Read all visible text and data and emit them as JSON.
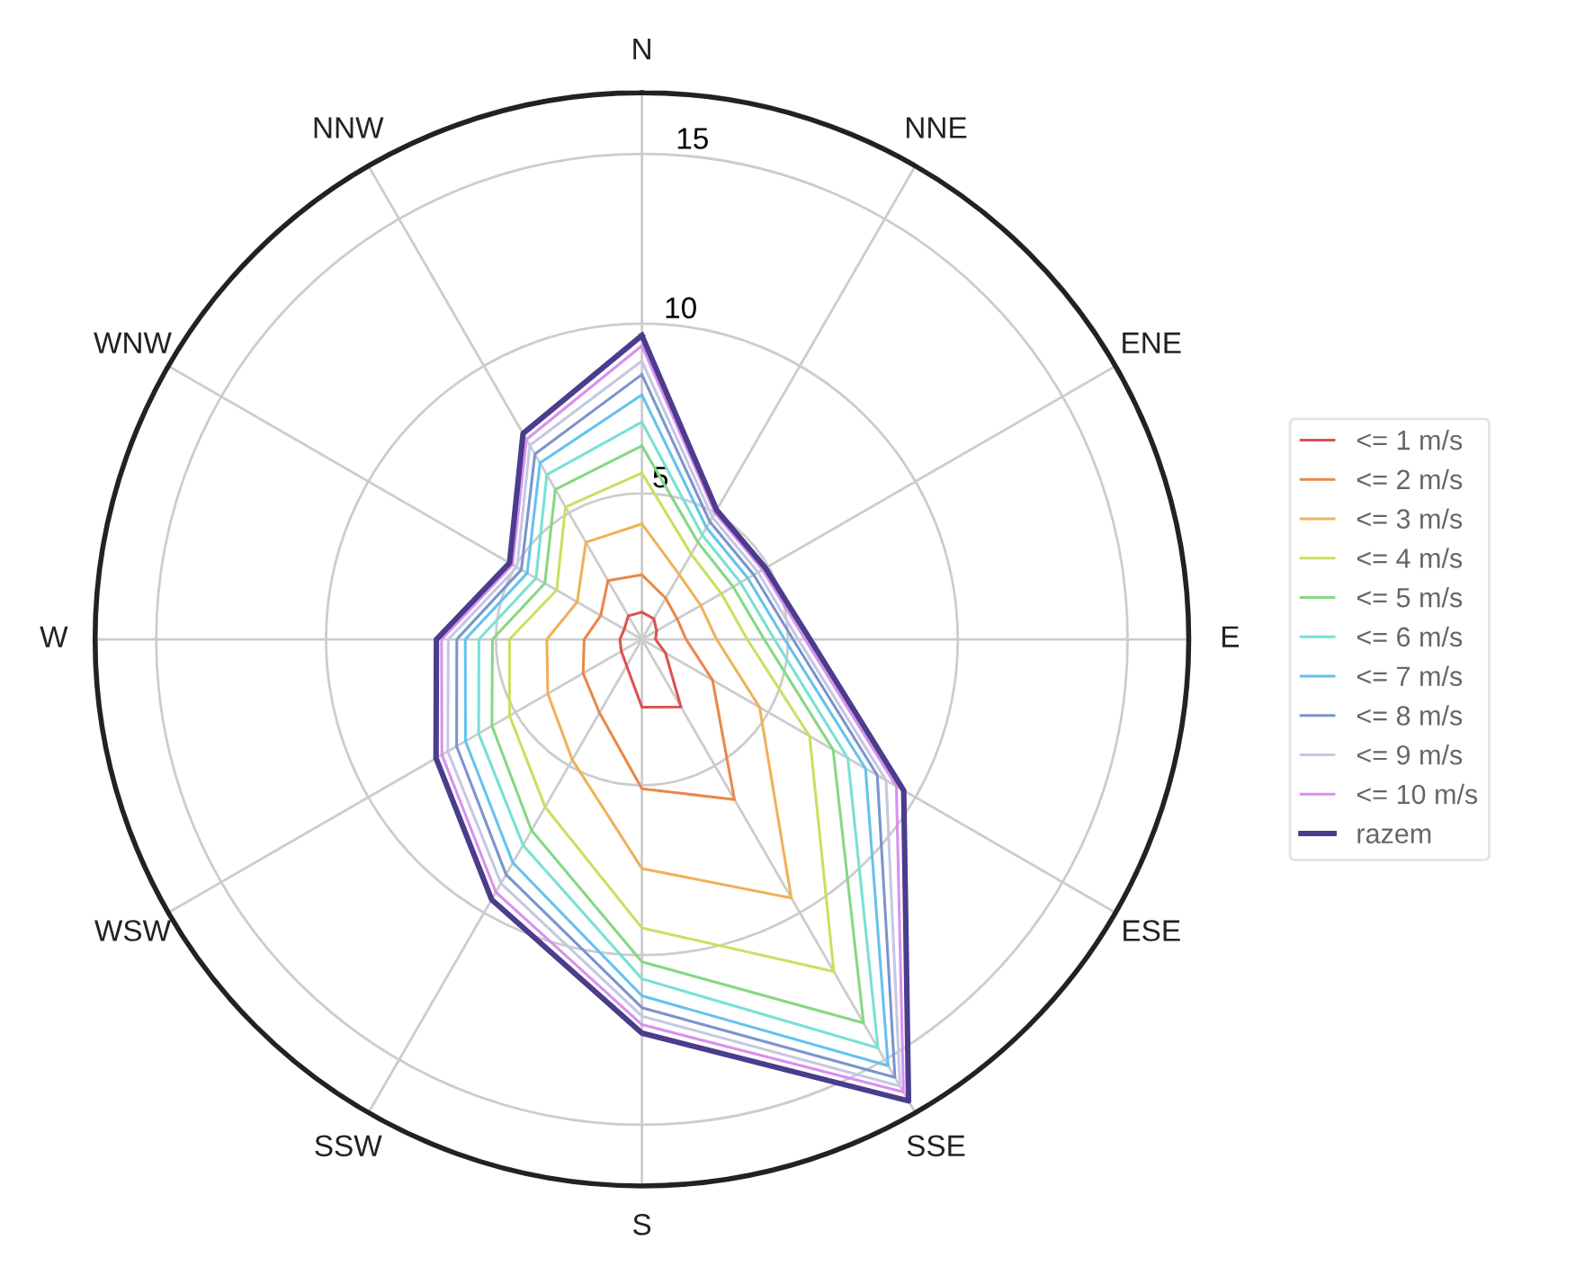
{
  "chart_data": {
    "type": "radar",
    "categories": [
      "N",
      "NNE",
      "ENE",
      "E",
      "ESE",
      "SSE",
      "S",
      "SSW",
      "WSW",
      "W",
      "WNW",
      "NNW"
    ],
    "ylim": [
      0.7,
      16.8
    ],
    "yticks": [
      5,
      10,
      15
    ],
    "grid": true,
    "legend": "right",
    "marker": "none",
    "line_style": "solid",
    "series": [
      {
        "name": "<= 1 m/s",
        "color": "#d9534f",
        "values": [
          1.5,
          1.4,
          1.2,
          1.1,
          1.5,
          3.0,
          2.7,
          1.6,
          1.4,
          1.35,
          1.3,
          1.5
        ]
      },
      {
        "name": "<= 2 m/s",
        "color": "#e8884a",
        "values": [
          2.6,
          2.1,
          1.9,
          2.0,
          3.1,
          6.15,
          5.1,
          3.2,
          2.7,
          2.4,
          2.1,
          2.7
        ]
      },
      {
        "name": "<= 3 m/s",
        "color": "#eeb25a",
        "values": [
          4.1,
          2.9,
          2.7,
          2.9,
          4.7,
          9.5,
          7.45,
          4.8,
          3.9,
          3.5,
          2.9,
          4.0
        ]
      },
      {
        "name": "<= 4 m/s",
        "color": "#c8e060",
        "values": [
          5.6,
          3.6,
          3.4,
          3.8,
          6.4,
          12.0,
          9.2,
          6.4,
          5.2,
          4.6,
          3.6,
          5.2
        ]
      },
      {
        "name": "<= 5 m/s",
        "color": "#84d884",
        "values": [
          6.4,
          4.0,
          3.8,
          4.3,
          7.2,
          13.75,
          10.2,
          7.2,
          5.8,
          5.1,
          4.0,
          5.8
        ]
      },
      {
        "name": "<= 6 m/s",
        "color": "#78e0d4",
        "values": [
          7.1,
          4.25,
          4.05,
          4.6,
          7.7,
          14.6,
          10.7,
          7.7,
          6.25,
          5.5,
          4.3,
          6.3
        ]
      },
      {
        "name": "<= 7 m/s",
        "color": "#64c2ee",
        "values": [
          7.9,
          4.5,
          4.3,
          4.9,
          8.3,
          15.2,
          11.2,
          8.3,
          6.7,
          5.9,
          4.6,
          6.7
        ]
      },
      {
        "name": "<= 8 m/s",
        "color": "#7a94cc",
        "values": [
          8.5,
          4.7,
          4.5,
          5.15,
          8.7,
          15.6,
          11.55,
          8.7,
          7.0,
          6.15,
          4.8,
          7.0
        ]
      },
      {
        "name": "<= 9 m/s",
        "color": "#c4c8e4",
        "values": [
          8.9,
          4.85,
          4.65,
          5.3,
          9.0,
          15.9,
          11.8,
          9.0,
          7.3,
          6.4,
          4.95,
          7.3
        ]
      },
      {
        "name": "<= 10 m/s",
        "color": "#d890f0",
        "values": [
          9.35,
          5.0,
          4.8,
          5.5,
          9.35,
          16.1,
          12.05,
          9.3,
          7.5,
          6.6,
          5.1,
          7.5
        ]
      },
      {
        "name": "razem",
        "color": "#4b3c8c",
        "values": [
          9.65,
          5.1,
          4.9,
          5.65,
          9.6,
          16.4,
          12.3,
          9.55,
          7.7,
          6.75,
          5.2,
          7.7
        ]
      }
    ]
  }
}
